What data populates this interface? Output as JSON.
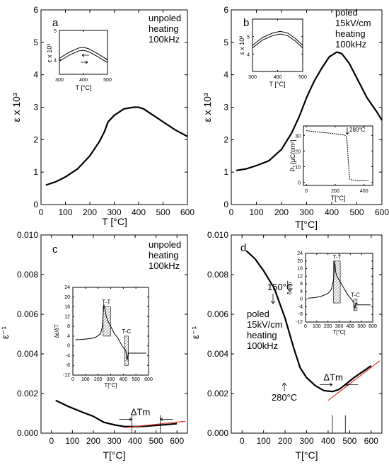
{
  "chart_data": [
    {
      "id": "a",
      "type": "line",
      "panel_letter": "a",
      "annotation": [
        "unpoled",
        "heating",
        "100kHz"
      ],
      "xlabel": "T [°C]",
      "ylabel": "ε x 10³",
      "xlim": [
        0,
        600
      ],
      "ylim": [
        0,
        6
      ],
      "xticks": [
        0,
        100,
        200,
        300,
        400,
        500,
        600
      ],
      "yticks": [
        0,
        1,
        2,
        3,
        4,
        5,
        6
      ],
      "series": [
        {
          "x": [
            20,
            60,
            100,
            150,
            200,
            240,
            260,
            275,
            300,
            340,
            380,
            400,
            420,
            460,
            500,
            550,
            600
          ],
          "y": [
            0.6,
            0.7,
            0.85,
            1.1,
            1.5,
            1.95,
            2.25,
            2.55,
            2.75,
            2.95,
            3.0,
            3.0,
            2.95,
            2.75,
            2.55,
            2.3,
            2.1
          ]
        }
      ],
      "inset": {
        "xlabel": "T [°C]",
        "ylabel": "ε x 10³",
        "xlim": [
          300,
          500
        ],
        "ylim": [
          3.5,
          5.0
        ],
        "xticks": [
          300,
          400,
          500
        ],
        "yticks": [
          4,
          5
        ],
        "series": [
          {
            "x": [
              300,
              340,
              380,
              400,
              420,
              460,
              500
            ],
            "y": [
              4.05,
              4.25,
              4.4,
              4.42,
              4.38,
              4.2,
              4.0
            ]
          },
          {
            "x": [
              300,
              340,
              380,
              400,
              420,
              460,
              500
            ],
            "y": [
              3.95,
              4.15,
              4.3,
              4.32,
              4.28,
              4.1,
              3.9
            ]
          }
        ]
      }
    },
    {
      "id": "b",
      "type": "line",
      "panel_letter": "b",
      "annotation": [
        "poled",
        "15kV/cm",
        "heating",
        "100kHz"
      ],
      "xlabel": "T[°C]",
      "ylabel": "ε x 10³",
      "xlim": [
        0,
        600
      ],
      "ylim": [
        0,
        6
      ],
      "xticks": [
        0,
        100,
        200,
        300,
        400,
        500,
        600
      ],
      "yticks": [
        0,
        1,
        2,
        3,
        4,
        5,
        6
      ],
      "series": [
        {
          "x": [
            20,
            60,
            100,
            150,
            200,
            240,
            270,
            300,
            330,
            360,
            390,
            420,
            440,
            470,
            500,
            540,
            580,
            600
          ],
          "y": [
            1.05,
            1.1,
            1.2,
            1.35,
            1.7,
            2.2,
            2.7,
            3.3,
            3.8,
            4.2,
            4.55,
            4.7,
            4.65,
            4.35,
            3.9,
            3.3,
            2.85,
            2.6
          ]
        }
      ],
      "inset_top": {
        "xlabel": "T [°C]",
        "ylabel": "ε x 10³",
        "xlim": [
          300,
          500
        ],
        "ylim": [
          3.0,
          6.0
        ],
        "xticks": [
          300,
          400,
          500
        ],
        "yticks": [
          4,
          5
        ],
        "series": [
          {
            "x": [
              300,
              340,
              380,
              410,
              440,
              470,
              500
            ],
            "y": [
              4.5,
              4.95,
              5.2,
              5.3,
              5.2,
              4.9,
              4.5
            ]
          },
          {
            "x": [
              300,
              340,
              380,
              410,
              440,
              470,
              500
            ],
            "y": [
              4.35,
              4.8,
              5.05,
              5.15,
              5.05,
              4.75,
              4.35
            ]
          }
        ]
      },
      "inset_bottom": {
        "xlabel": "T[°C]",
        "ylabel": "Pᵣ [μC/cm²]",
        "annotation": "280°C",
        "xlim": [
          -20,
          460
        ],
        "ylim": [
          -2,
          36
        ],
        "xticks": [
          0,
          200,
          400
        ],
        "yticks": [
          0,
          10,
          20,
          30
        ],
        "series": [
          {
            "x": [
              0,
              50,
              100,
              150,
              200,
              250,
              270,
              280,
              290,
              300,
              320,
              360,
              400,
              430
            ],
            "y": [
              33,
              32.5,
              32,
              31.5,
              31,
              30.5,
              30,
              29,
              15,
              2,
              1.5,
              1,
              1,
              1
            ]
          }
        ]
      }
    },
    {
      "id": "c",
      "type": "line",
      "panel_letter": "c",
      "annotation": [
        "unpoled",
        "heating",
        "100kHz"
      ],
      "xlabel": "T[°C]",
      "ylabel": "ε⁻¹",
      "xlim": [
        -50,
        650
      ],
      "ylim": [
        0,
        0.01
      ],
      "xticks": [
        0,
        100,
        200,
        300,
        400,
        500,
        600
      ],
      "yticks": [
        0.0,
        0.002,
        0.004,
        0.006,
        0.008,
        0.01
      ],
      "ytick_labels": [
        "0.000",
        "0.002",
        "0.004",
        "0.006",
        "0.008",
        "0.010"
      ],
      "delta_label": "ΔTm",
      "delta_markers": [
        385,
        520
      ],
      "series": [
        {
          "x": [
            20,
            80,
            150,
            200,
            250,
            300,
            350,
            400,
            450,
            500,
            550,
            600
          ],
          "y": [
            0.00165,
            0.00135,
            0.00105,
            0.00085,
            0.00055,
            0.00042,
            0.00033,
            0.00033,
            0.00035,
            0.00039,
            0.00043,
            0.00048
          ]
        }
      ],
      "fit_line": {
        "x": [
          350,
          640
        ],
        "y": [
          0.00028,
          0.0006
        ]
      },
      "inset": {
        "ylabel": "δε/δT",
        "xlabel": "T[°C]",
        "xlim": [
          0,
          600
        ],
        "ylim": [
          -12,
          24
        ],
        "xticks": [
          0,
          100,
          200,
          300,
          400,
          500,
          600
        ],
        "yticks": [
          -12,
          -8,
          -4,
          0,
          4,
          8,
          12,
          16,
          20,
          24
        ],
        "band_labels": [
          "T-T",
          "T-C"
        ],
        "series": [
          {
            "x": [
              20,
              60,
              100,
              140,
              180,
              220,
              235,
              245,
              255,
              265,
              280,
              300,
              330,
              360,
              390,
              420,
              430,
              440,
              460,
              500,
              540,
              580
            ],
            "y": [
              2.5,
              2.6,
              2.8,
              3.0,
              3.5,
              5,
              8,
              17,
              15,
              12,
              10,
              8,
              5,
              3,
              0,
              -2,
              -6,
              -3,
              -3,
              -3,
              -3,
              -3
            ]
          }
        ]
      }
    },
    {
      "id": "d",
      "type": "line",
      "panel_letter": "d",
      "annotation": [
        "poled",
        "15kV/cm",
        "heating",
        "100kHz"
      ],
      "annotation_150": "150°C",
      "annotation_280": "280°C",
      "xlabel": "T[°C]",
      "ylabel": "ε⁻¹",
      "xlim": [
        -50,
        650
      ],
      "ylim": [
        0,
        0.01
      ],
      "xticks": [
        0,
        100,
        200,
        300,
        400,
        500,
        600
      ],
      "yticks": [
        0.0,
        0.002,
        0.004,
        0.006,
        0.008,
        0.01
      ],
      "ytick_labels": [
        "0.000",
        "0.002",
        "0.004",
        "0.006",
        "0.008",
        "0.010"
      ],
      "delta_label": "ΔTm",
      "delta_markers": [
        420,
        480
      ],
      "series": [
        {
          "x": [
            20,
            60,
            100,
            150,
            200,
            240,
            270,
            300,
            340,
            380,
            420,
            450,
            480,
            520,
            560,
            600
          ],
          "y": [
            0.0092,
            0.0088,
            0.0082,
            0.0073,
            0.0058,
            0.0043,
            0.0033,
            0.0028,
            0.0024,
            0.00215,
            0.0021,
            0.0022,
            0.00245,
            0.0028,
            0.0031,
            0.0034
          ]
        }
      ],
      "fit_line": {
        "x": [
          400,
          640
        ],
        "y": [
          0.00165,
          0.00365
        ]
      },
      "inset": {
        "ylabel": "δε/δT",
        "xlabel": "T[°C]",
        "xlim": [
          0,
          600
        ],
        "ylim": [
          -12,
          24
        ],
        "xticks": [
          0,
          100,
          200,
          300,
          400,
          500,
          600
        ],
        "yticks": [
          -12,
          -8,
          -4,
          0,
          4,
          8,
          12,
          16,
          20,
          24
        ],
        "band_labels": [
          "T-T",
          "T-C"
        ],
        "series": [
          {
            "x": [
              20,
              80,
              140,
              200,
              230,
              250,
              260,
              270,
              280,
              300,
              320,
              350,
              380,
              410,
              430,
              440,
              450,
              470,
              520,
              580
            ],
            "y": [
              0.5,
              0.8,
              1.5,
              3,
              5,
              10,
              20,
              14,
              12,
              10,
              8,
              5,
              2,
              0,
              -2,
              -5,
              -2,
              -3,
              -3,
              -3
            ]
          }
        ]
      }
    }
  ]
}
